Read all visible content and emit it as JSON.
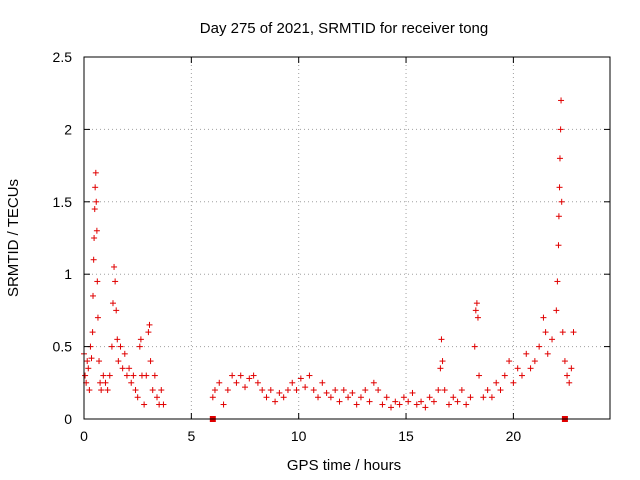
{
  "chart_data": {
    "type": "scatter",
    "title": "Day 275 of 2021, SRMTID for receiver tong",
    "xlabel": "GPS time / hours",
    "ylabel": "SRMTID / TECUs",
    "xlim": [
      0,
      24.5
    ],
    "ylim": [
      0,
      2.5
    ],
    "xticks": [
      0,
      5,
      10,
      15,
      20
    ],
    "xtick_labels": [
      "0",
      "5",
      "10",
      "15",
      "20"
    ],
    "yticks": [
      0,
      0.5,
      1,
      1.5,
      2,
      2.5
    ],
    "ytick_labels": [
      "0",
      "0.5",
      "1",
      "1.5",
      "2",
      "2.5"
    ],
    "grid": true,
    "colors": {
      "series": "#e00000",
      "grid": "#a0a0a0"
    },
    "series": [
      {
        "name": "SRMTID",
        "marker": "plus",
        "points": [
          [
            0.0,
            0.45
          ],
          [
            0.05,
            0.3
          ],
          [
            0.1,
            0.25
          ],
          [
            0.15,
            0.4
          ],
          [
            0.2,
            0.35
          ],
          [
            0.25,
            0.2
          ],
          [
            0.3,
            0.5
          ],
          [
            0.35,
            0.42
          ],
          [
            0.4,
            0.6
          ],
          [
            0.42,
            0.85
          ],
          [
            0.45,
            1.1
          ],
          [
            0.47,
            1.25
          ],
          [
            0.5,
            1.45
          ],
          [
            0.52,
            1.6
          ],
          [
            0.55,
            1.7
          ],
          [
            0.57,
            1.5
          ],
          [
            0.6,
            1.3
          ],
          [
            0.62,
            0.95
          ],
          [
            0.65,
            0.7
          ],
          [
            0.7,
            0.4
          ],
          [
            0.75,
            0.25
          ],
          [
            0.8,
            0.2
          ],
          [
            0.9,
            0.3
          ],
          [
            1.0,
            0.25
          ],
          [
            1.1,
            0.2
          ],
          [
            1.2,
            0.3
          ],
          [
            1.3,
            0.5
          ],
          [
            1.35,
            0.8
          ],
          [
            1.4,
            1.05
          ],
          [
            1.45,
            0.95
          ],
          [
            1.5,
            0.75
          ],
          [
            1.55,
            0.55
          ],
          [
            1.6,
            0.4
          ],
          [
            1.7,
            0.5
          ],
          [
            1.8,
            0.35
          ],
          [
            1.9,
            0.45
          ],
          [
            2.0,
            0.3
          ],
          [
            2.1,
            0.35
          ],
          [
            2.2,
            0.25
          ],
          [
            2.3,
            0.3
          ],
          [
            2.4,
            0.2
          ],
          [
            2.5,
            0.15
          ],
          [
            2.6,
            0.5
          ],
          [
            2.65,
            0.55
          ],
          [
            2.7,
            0.3
          ],
          [
            2.8,
            0.1
          ],
          [
            2.9,
            0.3
          ],
          [
            3.0,
            0.6
          ],
          [
            3.05,
            0.65
          ],
          [
            3.1,
            0.4
          ],
          [
            3.2,
            0.2
          ],
          [
            3.3,
            0.3
          ],
          [
            3.4,
            0.15
          ],
          [
            3.5,
            0.1
          ],
          [
            3.6,
            0.2
          ],
          [
            3.7,
            0.1
          ],
          [
            6.0,
            0.15
          ],
          [
            6.1,
            0.2
          ],
          [
            6.3,
            0.25
          ],
          [
            6.5,
            0.1
          ],
          [
            6.7,
            0.2
          ],
          [
            6.9,
            0.3
          ],
          [
            7.1,
            0.25
          ],
          [
            7.3,
            0.3
          ],
          [
            7.5,
            0.22
          ],
          [
            7.7,
            0.28
          ],
          [
            7.9,
            0.3
          ],
          [
            8.1,
            0.25
          ],
          [
            8.3,
            0.2
          ],
          [
            8.5,
            0.15
          ],
          [
            8.7,
            0.2
          ],
          [
            8.9,
            0.12
          ],
          [
            9.1,
            0.18
          ],
          [
            9.3,
            0.15
          ],
          [
            9.5,
            0.2
          ],
          [
            9.7,
            0.25
          ],
          [
            9.9,
            0.2
          ],
          [
            10.1,
            0.28
          ],
          [
            10.3,
            0.22
          ],
          [
            10.5,
            0.3
          ],
          [
            10.7,
            0.2
          ],
          [
            10.9,
            0.15
          ],
          [
            11.1,
            0.25
          ],
          [
            11.3,
            0.18
          ],
          [
            11.5,
            0.15
          ],
          [
            11.7,
            0.2
          ],
          [
            11.9,
            0.12
          ],
          [
            12.1,
            0.2
          ],
          [
            12.3,
            0.15
          ],
          [
            12.5,
            0.18
          ],
          [
            12.7,
            0.1
          ],
          [
            12.9,
            0.15
          ],
          [
            13.1,
            0.2
          ],
          [
            13.3,
            0.12
          ],
          [
            13.5,
            0.25
          ],
          [
            13.7,
            0.2
          ],
          [
            13.9,
            0.1
          ],
          [
            14.1,
            0.15
          ],
          [
            14.3,
            0.08
          ],
          [
            14.5,
            0.12
          ],
          [
            14.7,
            0.1
          ],
          [
            14.9,
            0.15
          ],
          [
            15.1,
            0.12
          ],
          [
            15.3,
            0.18
          ],
          [
            15.5,
            0.1
          ],
          [
            15.7,
            0.12
          ],
          [
            15.9,
            0.08
          ],
          [
            16.1,
            0.15
          ],
          [
            16.3,
            0.12
          ],
          [
            16.5,
            0.2
          ],
          [
            16.6,
            0.35
          ],
          [
            16.65,
            0.55
          ],
          [
            16.7,
            0.4
          ],
          [
            16.8,
            0.2
          ],
          [
            17.0,
            0.1
          ],
          [
            17.2,
            0.15
          ],
          [
            17.4,
            0.12
          ],
          [
            17.6,
            0.2
          ],
          [
            17.8,
            0.1
          ],
          [
            18.0,
            0.15
          ],
          [
            18.2,
            0.5
          ],
          [
            18.25,
            0.75
          ],
          [
            18.3,
            0.8
          ],
          [
            18.35,
            0.7
          ],
          [
            18.4,
            0.3
          ],
          [
            18.6,
            0.15
          ],
          [
            18.8,
            0.2
          ],
          [
            19.0,
            0.15
          ],
          [
            19.2,
            0.25
          ],
          [
            19.4,
            0.2
          ],
          [
            19.6,
            0.3
          ],
          [
            19.8,
            0.4
          ],
          [
            20.0,
            0.25
          ],
          [
            20.2,
            0.35
          ],
          [
            20.4,
            0.3
          ],
          [
            20.6,
            0.45
          ],
          [
            20.8,
            0.35
          ],
          [
            21.0,
            0.4
          ],
          [
            21.2,
            0.5
          ],
          [
            21.4,
            0.7
          ],
          [
            21.5,
            0.6
          ],
          [
            21.6,
            0.45
          ],
          [
            21.8,
            0.55
          ],
          [
            22.0,
            0.75
          ],
          [
            22.05,
            0.95
          ],
          [
            22.1,
            1.2
          ],
          [
            22.12,
            1.4
          ],
          [
            22.15,
            1.6
          ],
          [
            22.17,
            1.8
          ],
          [
            22.2,
            2.0
          ],
          [
            22.22,
            2.2
          ],
          [
            22.25,
            1.5
          ],
          [
            22.3,
            0.6
          ],
          [
            22.4,
            0.4
          ],
          [
            22.5,
            0.3
          ],
          [
            22.6,
            0.25
          ],
          [
            22.7,
            0.35
          ],
          [
            22.8,
            0.6
          ]
        ]
      }
    ],
    "dropouts": [
      6.0,
      22.4
    ]
  }
}
